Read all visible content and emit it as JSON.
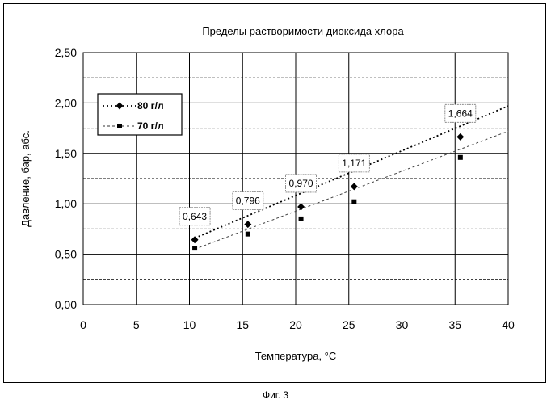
{
  "chart_data": {
    "type": "scatter",
    "title": "Пределы растворимости диоксида хлора",
    "xlabel": "Температура, °С",
    "ylabel": "Давление, бар, абс.",
    "xlim": [
      0,
      40
    ],
    "ylim": [
      0,
      2.5
    ],
    "x_ticks": [
      "0",
      "5",
      "10",
      "15",
      "20",
      "25",
      "30",
      "35",
      "40"
    ],
    "y_ticks": [
      "0,00",
      "0,50",
      "1,00",
      "1,50",
      "2,00",
      "2,50"
    ],
    "grid": "major vertical solid, minor horizontal dashed",
    "legend_position": "top-left",
    "series": [
      {
        "name": "80 г/л",
        "marker": "diamond",
        "color": "#000000",
        "x": [
          10.5,
          15.5,
          20.5,
          25.5,
          35.5
        ],
        "y": [
          0.643,
          0.796,
          0.97,
          1.171,
          1.664
        ],
        "data_labels": [
          "0,643",
          "0,796",
          "0,970",
          "1,171",
          "1,664"
        ],
        "trendline": {
          "style": "dotted",
          "x": [
            10.5,
            40
          ],
          "y": [
            0.66,
            1.97
          ]
        }
      },
      {
        "name": "70 г/л",
        "marker": "square",
        "color": "#000000",
        "x": [
          10.5,
          15.5,
          20.5,
          25.5,
          35.5
        ],
        "y": [
          0.56,
          0.7,
          0.85,
          1.02,
          1.46
        ],
        "data_labels": [],
        "trendline": {
          "style": "dashed",
          "x": [
            10.5,
            40
          ],
          "y": [
            0.55,
            1.72
          ]
        }
      }
    ]
  },
  "caption": "Фиг. 3"
}
